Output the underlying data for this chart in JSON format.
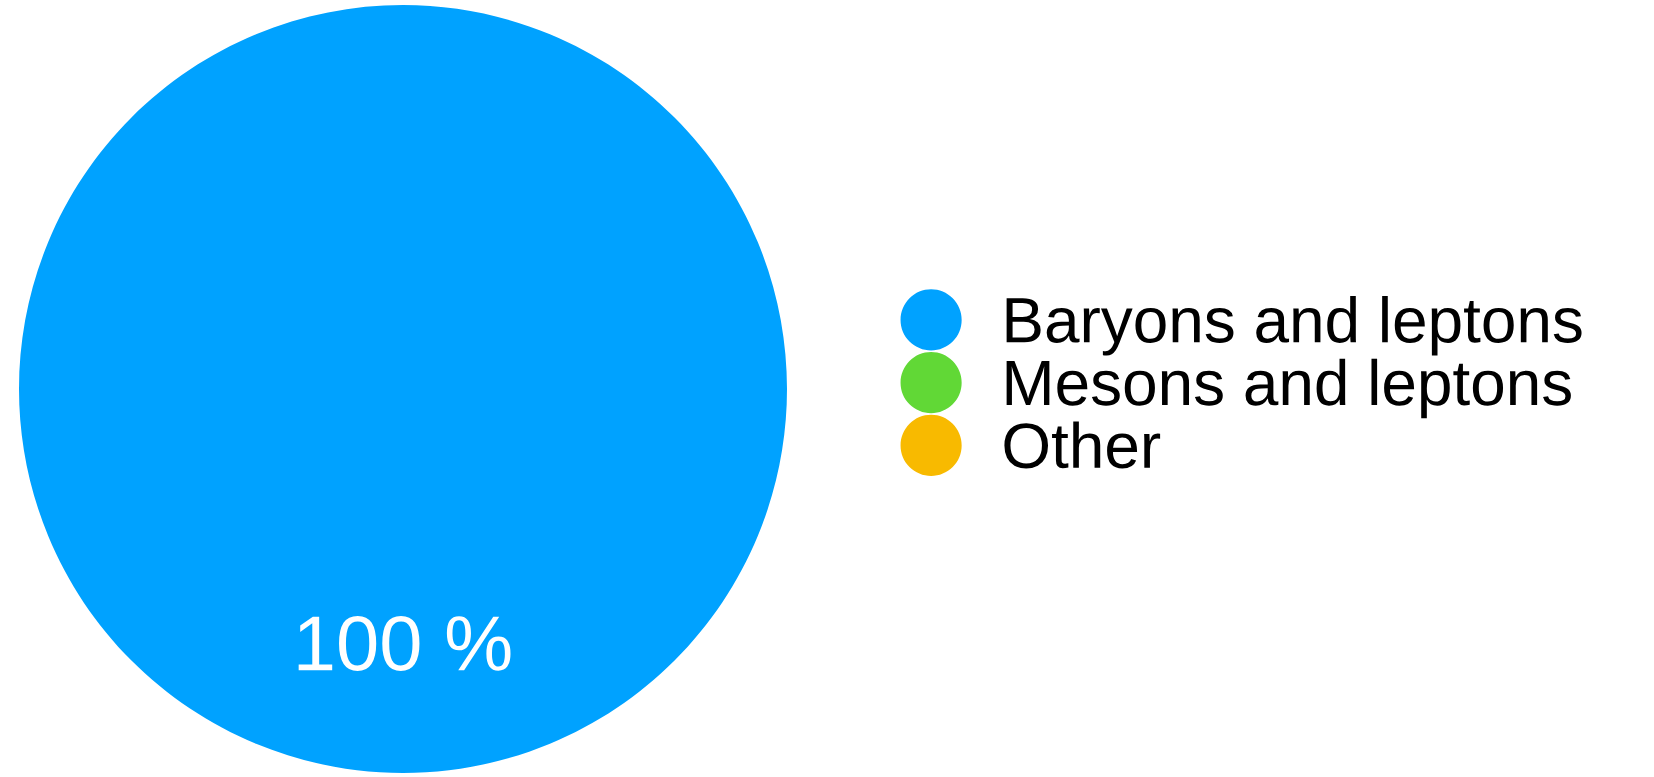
{
  "chart_data": {
    "type": "pie",
    "categories": [
      "Baryons and leptons",
      "Mesons and leptons",
      "Other"
    ],
    "values": [
      100,
      0,
      0
    ],
    "colors": [
      "#00a2ff",
      "#61d836",
      "#f8ba00"
    ],
    "value_labels": [
      "100 %",
      null,
      null
    ],
    "legend": "right"
  }
}
